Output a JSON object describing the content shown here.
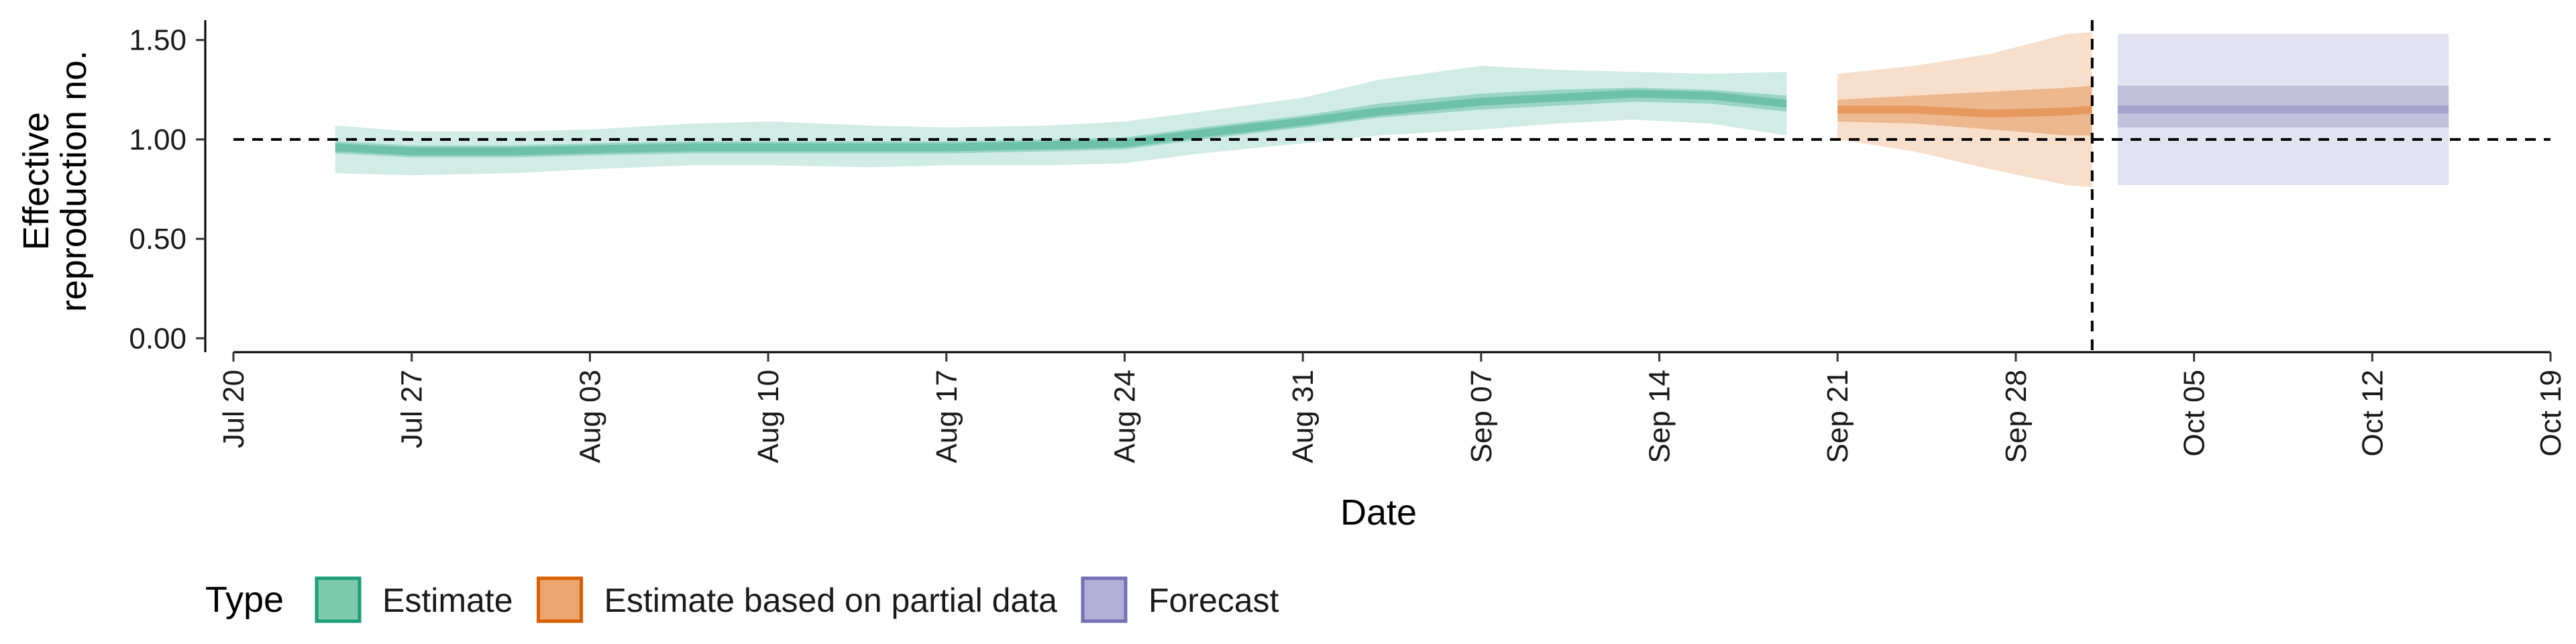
{
  "chart_data": {
    "type": "area",
    "title": "",
    "xlabel": "Date",
    "ylabel": [
      "Effective",
      "reproduction no."
    ],
    "x_ticks": [
      "Jul 20",
      "Jul 27",
      "Aug 03",
      "Aug 10",
      "Aug 17",
      "Aug 24",
      "Aug 31",
      "Sep 07",
      "Sep 14",
      "Sep 21",
      "Sep 28",
      "Oct 05",
      "Oct 12",
      "Oct 19"
    ],
    "y_ticks": [
      "0.00",
      "0.50",
      "1.00",
      "1.50"
    ],
    "ylim": [
      -0.07,
      1.6
    ],
    "xlim": [
      "2020-07-20",
      "2020-10-19"
    ],
    "reference_lines": {
      "horizontal_y": 1.0,
      "vertical_x": "2020-10-01"
    },
    "legend": {
      "title": "Type",
      "position": "bottom",
      "items": [
        {
          "label": "Estimate",
          "fill": "#7fc9ad",
          "stroke": "#1b9e77"
        },
        {
          "label": "Estimate based on partial data",
          "fill": "#eba66f",
          "stroke": "#d95f02"
        },
        {
          "label": "Forecast",
          "fill": "#b2afd6",
          "stroke": "#7570b3"
        }
      ]
    },
    "series": [
      {
        "type": "Estimate",
        "color": "#1b9e77",
        "points": [
          {
            "x": "2020-07-24",
            "median": 0.96,
            "lo50": 0.93,
            "hi50": 0.99,
            "lo90": 0.83,
            "hi90": 1.07
          },
          {
            "x": "2020-07-27",
            "median": 0.94,
            "lo50": 0.91,
            "hi50": 0.97,
            "lo90": 0.82,
            "hi90": 1.04
          },
          {
            "x": "2020-07-31",
            "median": 0.94,
            "lo50": 0.91,
            "hi50": 0.97,
            "lo90": 0.83,
            "hi90": 1.04
          },
          {
            "x": "2020-08-03",
            "median": 0.95,
            "lo50": 0.92,
            "hi50": 0.98,
            "lo90": 0.85,
            "hi90": 1.05
          },
          {
            "x": "2020-08-07",
            "median": 0.96,
            "lo50": 0.93,
            "hi50": 0.99,
            "lo90": 0.87,
            "hi90": 1.08
          },
          {
            "x": "2020-08-10",
            "median": 0.96,
            "lo50": 0.93,
            "hi50": 0.99,
            "lo90": 0.87,
            "hi90": 1.09
          },
          {
            "x": "2020-08-14",
            "median": 0.96,
            "lo50": 0.93,
            "hi50": 0.99,
            "lo90": 0.86,
            "hi90": 1.07
          },
          {
            "x": "2020-08-17",
            "median": 0.96,
            "lo50": 0.93,
            "hi50": 0.99,
            "lo90": 0.87,
            "hi90": 1.06
          },
          {
            "x": "2020-08-21",
            "median": 0.97,
            "lo50": 0.94,
            "hi50": 1.0,
            "lo90": 0.87,
            "hi90": 1.07
          },
          {
            "x": "2020-08-24",
            "median": 0.98,
            "lo50": 0.95,
            "hi50": 1.01,
            "lo90": 0.88,
            "hi90": 1.09
          },
          {
            "x": "2020-08-27",
            "median": 1.03,
            "lo50": 1.0,
            "hi50": 1.06,
            "lo90": 0.93,
            "hi90": 1.14
          },
          {
            "x": "2020-08-31",
            "median": 1.09,
            "lo50": 1.06,
            "hi50": 1.12,
            "lo90": 0.98,
            "hi90": 1.21
          },
          {
            "x": "2020-09-03",
            "median": 1.14,
            "lo50": 1.11,
            "hi50": 1.18,
            "lo90": 1.02,
            "hi90": 1.3
          },
          {
            "x": "2020-09-07",
            "median": 1.19,
            "lo50": 1.15,
            "hi50": 1.23,
            "lo90": 1.05,
            "hi90": 1.37
          },
          {
            "x": "2020-09-10",
            "median": 1.21,
            "lo50": 1.17,
            "hi50": 1.25,
            "lo90": 1.08,
            "hi90": 1.35
          },
          {
            "x": "2020-09-13",
            "median": 1.23,
            "lo50": 1.19,
            "hi50": 1.26,
            "lo90": 1.1,
            "hi90": 1.34
          },
          {
            "x": "2020-09-16",
            "median": 1.22,
            "lo50": 1.18,
            "hi50": 1.25,
            "lo90": 1.08,
            "hi90": 1.33
          },
          {
            "x": "2020-09-19",
            "median": 1.18,
            "lo50": 1.14,
            "hi50": 1.22,
            "lo90": 1.02,
            "hi90": 1.34
          }
        ]
      },
      {
        "type": "Estimate based on partial data",
        "color": "#d95f02",
        "points": [
          {
            "x": "2020-09-21",
            "median": 1.15,
            "lo50": 1.09,
            "hi50": 1.2,
            "lo90": 1.0,
            "hi90": 1.33
          },
          {
            "x": "2020-09-24",
            "median": 1.15,
            "lo50": 1.08,
            "hi50": 1.22,
            "lo90": 0.94,
            "hi90": 1.37
          },
          {
            "x": "2020-09-27",
            "median": 1.13,
            "lo50": 1.05,
            "hi50": 1.24,
            "lo90": 0.85,
            "hi90": 1.43
          },
          {
            "x": "2020-09-30",
            "median": 1.14,
            "lo50": 1.02,
            "hi50": 1.26,
            "lo90": 0.77,
            "hi90": 1.53
          },
          {
            "x": "2020-10-01",
            "median": 1.15,
            "lo50": 1.02,
            "hi50": 1.27,
            "lo90": 0.76,
            "hi90": 1.54
          }
        ]
      },
      {
        "type": "Forecast",
        "color": "#7570b3",
        "points": [
          {
            "x": "2020-10-02",
            "median": 1.15,
            "lo50": 1.06,
            "hi50": 1.27,
            "lo90": 0.77,
            "hi90": 1.53
          },
          {
            "x": "2020-10-15",
            "median": 1.15,
            "lo50": 1.06,
            "hi50": 1.27,
            "lo90": 0.77,
            "hi90": 1.53
          }
        ]
      }
    ]
  }
}
